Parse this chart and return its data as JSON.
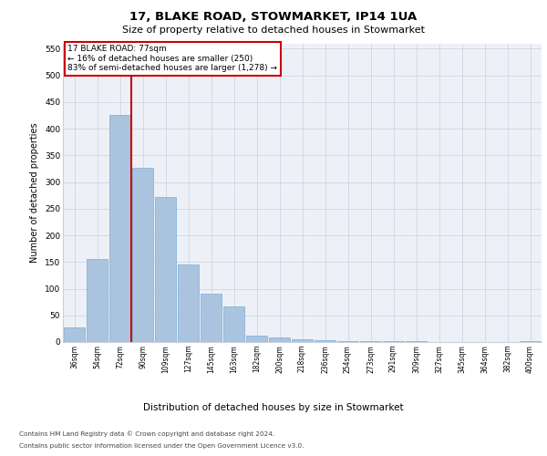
{
  "title1": "17, BLAKE ROAD, STOWMARKET, IP14 1UA",
  "title2": "Size of property relative to detached houses in Stowmarket",
  "xlabel": "Distribution of detached houses by size in Stowmarket",
  "ylabel": "Number of detached properties",
  "categories": [
    "36sqm",
    "54sqm",
    "72sqm",
    "90sqm",
    "109sqm",
    "127sqm",
    "145sqm",
    "163sqm",
    "182sqm",
    "200sqm",
    "218sqm",
    "236sqm",
    "254sqm",
    "273sqm",
    "291sqm",
    "309sqm",
    "327sqm",
    "345sqm",
    "364sqm",
    "382sqm",
    "400sqm"
  ],
  "values": [
    28,
    155,
    425,
    327,
    272,
    145,
    91,
    67,
    12,
    8,
    5,
    3,
    2,
    1,
    1,
    1,
    0,
    0,
    0,
    0,
    2
  ],
  "bar_color": "#aac4e0",
  "bar_edgecolor": "#7aadd4",
  "vline_color": "#cc0000",
  "annotation_text": "17 BLAKE ROAD: 77sqm\n← 16% of detached houses are smaller (250)\n83% of semi-detached houses are larger (1,278) →",
  "annotation_box_color": "#ffffff",
  "annotation_box_edgecolor": "#cc0000",
  "ylim": [
    0,
    560
  ],
  "yticks": [
    0,
    50,
    100,
    150,
    200,
    250,
    300,
    350,
    400,
    450,
    500,
    550
  ],
  "footer1": "Contains HM Land Registry data © Crown copyright and database right 2024.",
  "footer2": "Contains public sector information licensed under the Open Government Licence v3.0.",
  "plot_background": "#edf1f7"
}
